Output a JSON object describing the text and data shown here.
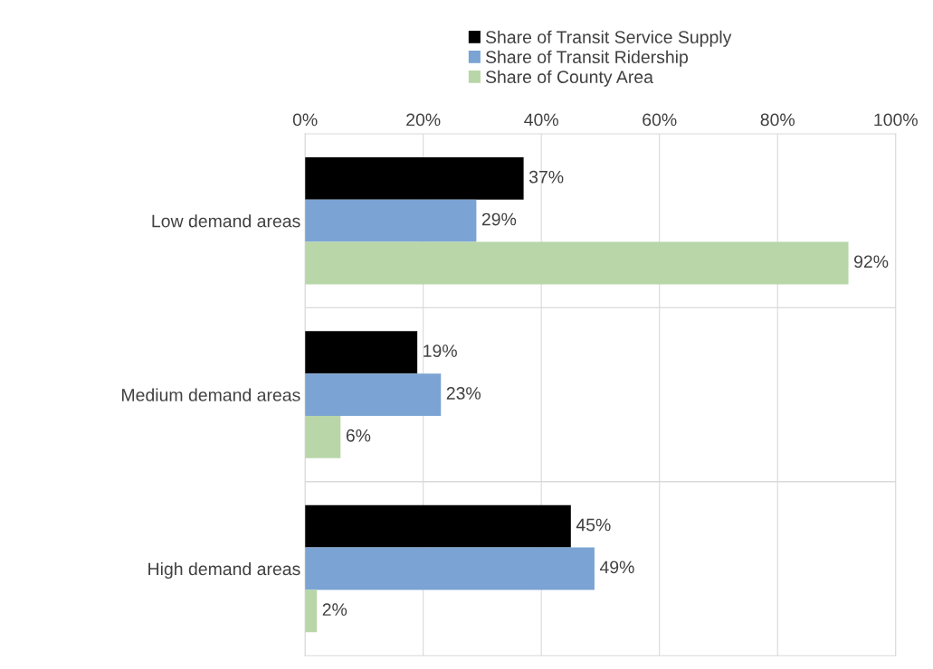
{
  "chart_data": {
    "type": "bar",
    "orientation": "horizontal",
    "categories": [
      "Low demand areas",
      "Medium demand areas",
      "High demand areas"
    ],
    "series": [
      {
        "name": "Share of Transit Service Supply",
        "color": "#000000",
        "values": [
          37,
          19,
          45
        ],
        "value_labels": [
          "37%",
          "19%",
          "45%"
        ]
      },
      {
        "name": "Share of Transit Ridership",
        "color": "#7ba3d3",
        "values": [
          29,
          23,
          49
        ],
        "value_labels": [
          "29%",
          "23%",
          "49%"
        ]
      },
      {
        "name": "Share of County Area",
        "color": "#b8d6a8",
        "values": [
          92,
          6,
          2
        ],
        "value_labels": [
          "92%",
          "6%",
          "2%"
        ]
      }
    ],
    "xlim": [
      0,
      100
    ],
    "xticks": [
      {
        "value": 0,
        "label": "0%"
      },
      {
        "value": 20,
        "label": "20%"
      },
      {
        "value": 40,
        "label": "40%"
      },
      {
        "value": 60,
        "label": "60%"
      },
      {
        "value": 80,
        "label": "80%"
      },
      {
        "value": 100,
        "label": "100%"
      }
    ],
    "grid": "x",
    "legend": "top"
  }
}
